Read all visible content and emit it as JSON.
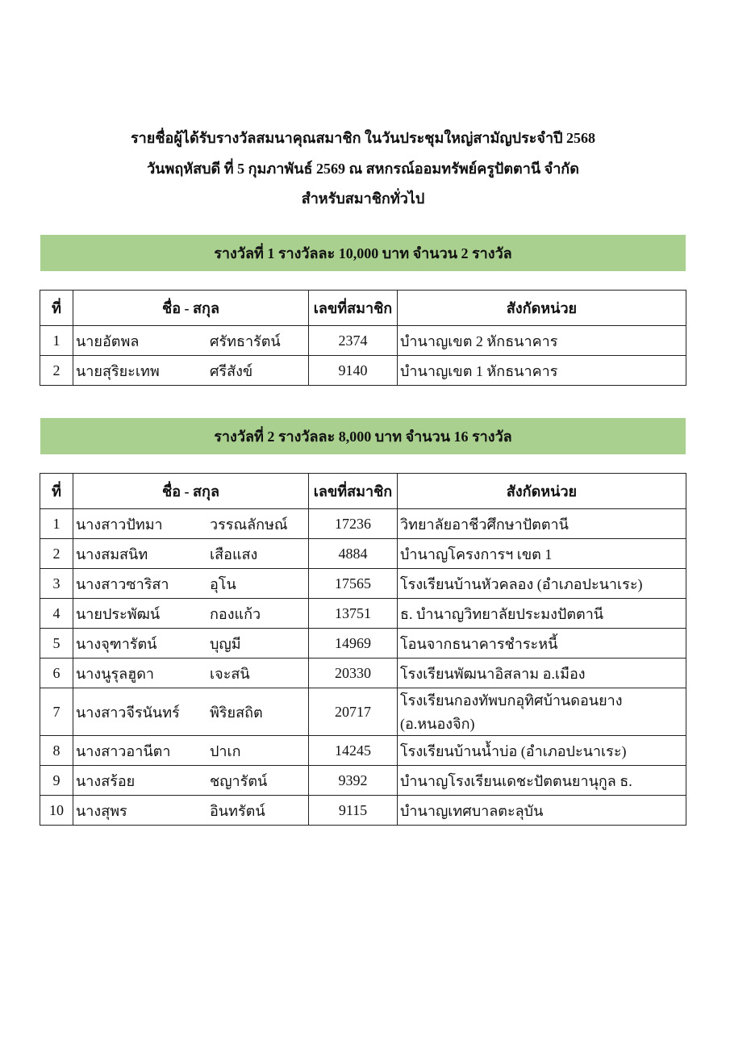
{
  "heading": {
    "line1": "รายชื่อผู้ได้รับรางวัลสมนาคุณสมาชิก ในวันประชุมใหญ่สามัญประจำปี  2568",
    "line2": "วันพฤหัสบดี  ที่  5  กุมภาพันธ์  2569   ณ  สหกรณ์ออมทรัพย์ครูปัตตานี  จำกัด",
    "line3": "สำหรับสมาชิกทั่วไป"
  },
  "columns": [
    "ที่",
    "ชื่อ - สกุล",
    "เลขที่สมาชิก",
    "สังกัดหน่วย"
  ],
  "band_color": "#a9d08e",
  "prizes": [
    {
      "title": "รางวัลที่  1  รางวัลละ  10,000  บาท  จำนวน  2  รางวัล",
      "rows": [
        {
          "no": "1",
          "first": "นายอัตพล",
          "last": "ศรัทธารัตน์",
          "member_id": "2374",
          "unit": "บำนาญเขต 2 หักธนาคาร"
        },
        {
          "no": "2",
          "first": "นายสุริยะเทพ",
          "last": "ศรีสังข์",
          "member_id": "9140",
          "unit": "บำนาญเขต 1 หักธนาคาร"
        }
      ]
    },
    {
      "title": "รางวัลที่  2  รางวัลละ  8,000  บาท  จำนวน  16  รางวัล",
      "rows": [
        {
          "no": "1",
          "first": "นางสาวปัทมา",
          "last": "วรรณลักษณ์",
          "member_id": "17236",
          "unit": "วิทยาลัยอาชีวศึกษาปัตตานี"
        },
        {
          "no": "2",
          "first": "นางสมสนิท",
          "last": "เสือแสง",
          "member_id": "4884",
          "unit": "บำนาญโครงการฯ เขต 1"
        },
        {
          "no": "3",
          "first": "นางสาวซาริสา",
          "last": "อุโน",
          "member_id": "17565",
          "unit": "โรงเรียนบ้านหัวคลอง (อำเภอปะนาเระ)"
        },
        {
          "no": "4",
          "first": "นายประพัฒน์",
          "last": "กองแก้ว",
          "member_id": "13751",
          "unit": "ธ. บำนาญวิทยาลัยประมงปัตตานี"
        },
        {
          "no": "5",
          "first": "นางจุฑารัตน์",
          "last": "บุญมี",
          "member_id": "14969",
          "unit": "โอนจากธนาคารชำระหนี้"
        },
        {
          "no": "6",
          "first": "นางนูรุลฮูดา",
          "last": "เจะสนิ",
          "member_id": "20330",
          "unit": "โรงเรียนพัฒนาอิสลาม  อ.เมือง"
        },
        {
          "no": "7",
          "first": "นางสาวจีรนันทร์",
          "last": "พิริยสถิต",
          "member_id": "20717",
          "unit": "โรงเรียนกองทัพบกอุทิศบ้านดอนยาง (อ.หนองจิก)"
        },
        {
          "no": "8",
          "first": "นางสาวอานีตา",
          "last": "ปาเก",
          "member_id": "14245",
          "unit": "โรงเรียนบ้านน้ำบ่อ  (อำเภอปะนาเระ)"
        },
        {
          "no": "9",
          "first": "นางสร้อย",
          "last": "ชญารัตน์",
          "member_id": "9392",
          "unit": "บำนาญโรงเรียนเดชะปัตตนยานุกูล ธ."
        },
        {
          "no": "10",
          "first": "นางสุพร",
          "last": "อินทรัตน์",
          "member_id": "9115",
          "unit": "บำนาญเทศบาลตะลุบัน"
        }
      ]
    }
  ]
}
